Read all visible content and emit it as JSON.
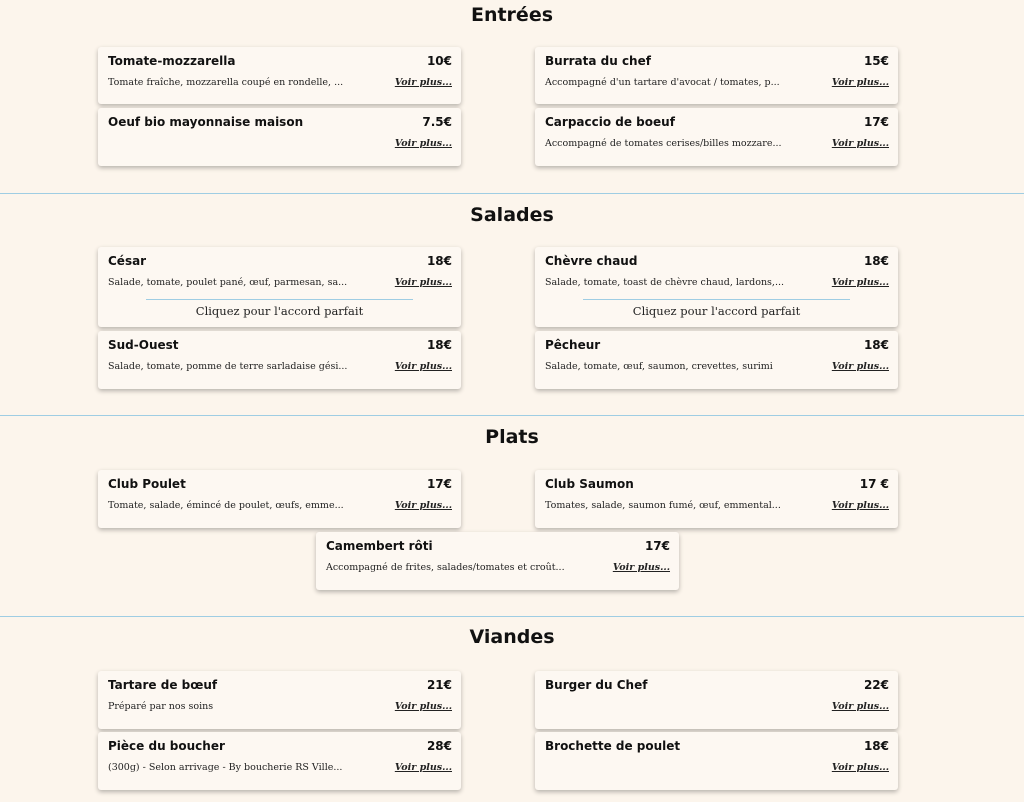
{
  "sections": [
    {
      "title": "Entrées",
      "items": [
        {
          "name": "Tomate-mozzarella",
          "price": "10€",
          "desc": "Tomate fraîche, mozzarella coupé en rondelle, ...",
          "more": "Voir plus..."
        },
        {
          "name": "Burrata du chef",
          "price": "15€",
          "desc": "Accompagné d'un tartare d'avocat / tomates, p...",
          "more": "Voir plus..."
        },
        {
          "name": "Oeuf bio mayonnaise maison",
          "price": "7.5€",
          "desc": "",
          "more": "Voir plus..."
        },
        {
          "name": "Carpaccio de boeuf",
          "price": "17€",
          "desc": "Accompagné de tomates cerises/billes mozzare...",
          "more": "Voir plus..."
        }
      ]
    },
    {
      "title": "Salades",
      "items": [
        {
          "name": "César",
          "price": "18€",
          "desc": "Salade, tomate, poulet pané, œuf, parmesan, sa...",
          "more": "Voir plus...",
          "accord": "Cliquez pour l'accord parfait"
        },
        {
          "name": "Chèvre chaud",
          "price": "18€",
          "desc": "Salade, tomate, toast de chèvre chaud, lardons,...",
          "more": "Voir plus...",
          "accord": "Cliquez pour l'accord parfait"
        },
        {
          "name": "Sud-Ouest",
          "price": "18€",
          "desc": "Salade, tomate, pomme de terre sarladaise gési...",
          "more": "Voir plus..."
        },
        {
          "name": "Pêcheur",
          "price": "18€",
          "desc": "Salade, tomate, œuf, saumon, crevettes, surimi",
          "more": "Voir plus..."
        }
      ]
    },
    {
      "title": "Plats",
      "items": [
        {
          "name": "Club Poulet",
          "price": "17€",
          "desc": "Tomate, salade, émincé de poulet, œufs, emme...",
          "more": "Voir plus..."
        },
        {
          "name": "Club Saumon",
          "price": "17 €",
          "desc": "Tomates, salade, saumon fumé, œuf, emmental...",
          "more": "Voir plus..."
        },
        {
          "name": "Camembert rôti",
          "price": "17€",
          "desc": "Accompagné de frites, salades/tomates et croût...",
          "more": "Voir plus..."
        }
      ]
    },
    {
      "title": "Viandes",
      "items": [
        {
          "name": "Tartare de bœuf",
          "price": "21€",
          "desc": "Préparé par nos soins",
          "more": "Voir plus..."
        },
        {
          "name": "Burger du Chef",
          "price": "22€",
          "desc": "",
          "more": "Voir plus..."
        },
        {
          "name": "Pièce du boucher",
          "price": "28€",
          "desc": "(300g) - Selon arrivage - By boucherie RS Ville...",
          "more": "Voir plus..."
        },
        {
          "name": "Brochette de poulet",
          "price": "18€",
          "desc": "",
          "more": "Voir plus..."
        }
      ]
    }
  ]
}
